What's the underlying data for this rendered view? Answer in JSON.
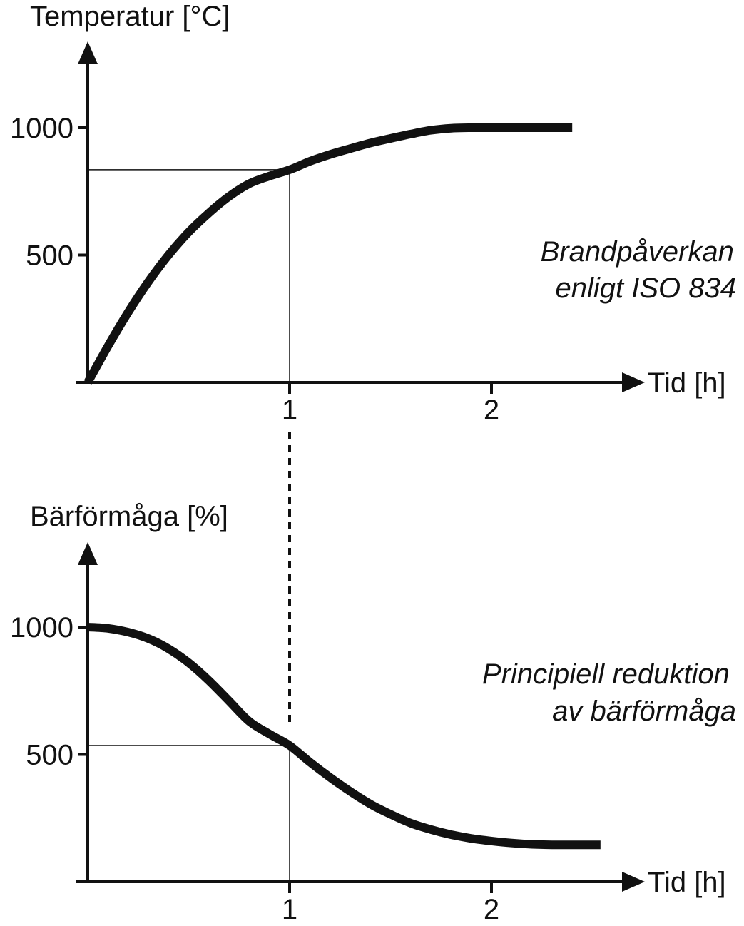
{
  "chart_data": [
    {
      "type": "line",
      "ylabel": "Temperatur [°C]",
      "xlabel": "Tid [h]",
      "x_ticks": [
        "1",
        "2"
      ],
      "y_ticks": [
        "500",
        "1000"
      ],
      "annotation": [
        "Brandpåverkan",
        "enligt ISO 834"
      ],
      "xlim": [
        0,
        2.5
      ],
      "ylim": [
        0,
        1000
      ],
      "reference": {
        "x": 1,
        "y": 835
      },
      "series": [
        {
          "x": [
            0,
            0.1,
            0.2,
            0.3,
            0.4,
            0.5,
            0.6,
            0.7,
            0.8,
            0.9,
            1.0,
            1.1,
            1.2,
            1.3,
            1.4,
            1.5,
            1.6,
            1.7,
            1.8,
            1.9,
            2.0,
            2.1,
            2.2,
            2.3,
            2.4
          ],
          "values": [
            0,
            142,
            275,
            395,
            500,
            590,
            665,
            730,
            780,
            810,
            835,
            868,
            895,
            918,
            940,
            958,
            975,
            990,
            998,
            1000,
            1000,
            1000,
            1000,
            1000,
            1000
          ]
        }
      ]
    },
    {
      "type": "line",
      "ylabel": "Bärförmåga [%]",
      "xlabel": "Tid [h]",
      "x_ticks": [
        "1",
        "2"
      ],
      "y_ticks": [
        "500",
        "1000"
      ],
      "annotation": [
        "Principiell reduktion",
        "av bärförmåga"
      ],
      "xlim": [
        0,
        2.5
      ],
      "ylim": [
        0,
        1000
      ],
      "reference": {
        "x": 1,
        "y": 535
      },
      "series": [
        {
          "x": [
            0,
            0.1,
            0.2,
            0.3,
            0.4,
            0.5,
            0.6,
            0.7,
            0.8,
            0.9,
            1.0,
            1.1,
            1.2,
            1.3,
            1.4,
            1.5,
            1.6,
            1.7,
            1.8,
            1.9,
            2.0,
            2.1,
            2.2,
            2.3,
            2.4,
            2.54
          ],
          "values": [
            1000,
            995,
            980,
            955,
            915,
            860,
            790,
            710,
            630,
            580,
            535,
            470,
            410,
            355,
            305,
            265,
            230,
            205,
            185,
            170,
            160,
            152,
            147,
            145,
            145,
            145
          ]
        }
      ]
    }
  ]
}
